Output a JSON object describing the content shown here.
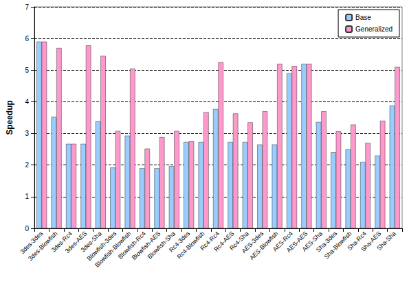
{
  "chart_data": {
    "type": "bar",
    "y_label": "Speedup",
    "categories": [
      "3des-3des",
      "3des-Blowfish",
      "3des-Rc4",
      "3des-AES",
      "3des-Sha",
      "Blowfish-3des",
      "Blowfish-Blowfish",
      "Blowfish-Rc4",
      "Blowfish-AES",
      "Blowfish-Sha",
      "Rc4-3des",
      "Rc4-Blowfish",
      "Rc4-Rc4",
      "Rc4-AES",
      "Rc4-Sha",
      "AES-3des",
      "AES-Blowfish",
      "AES-Rc4",
      "AES-AES",
      "AES-Sha",
      "Sha-3des",
      "Sha-Blowfish",
      "Sha-Rc4",
      "Sha-AES",
      "Sha-Sha"
    ],
    "series": [
      {
        "name": "Base",
        "color": "#99ccff",
        "values": [
          5.9,
          3.52,
          2.67,
          2.67,
          3.38,
          1.92,
          2.93,
          1.9,
          1.9,
          1.97,
          2.73,
          2.73,
          3.77,
          2.73,
          2.73,
          2.65,
          2.65,
          4.9,
          5.2,
          3.36,
          2.4,
          2.5,
          2.1,
          2.3,
          3.88
        ]
      },
      {
        "name": "Generalized",
        "color": "#ff99cc",
        "values": [
          5.9,
          5.7,
          2.67,
          5.78,
          5.45,
          3.08,
          5.05,
          2.52,
          2.88,
          3.08,
          2.75,
          3.67,
          5.25,
          3.63,
          3.35,
          3.7,
          5.2,
          5.13,
          5.2,
          3.7,
          3.07,
          3.28,
          2.7,
          3.4,
          5.1
        ]
      }
    ],
    "ylim": [
      0,
      7
    ],
    "yticks": [
      0,
      1,
      2,
      3,
      4,
      5,
      6,
      7
    ],
    "grid": true,
    "legend": "upper right"
  }
}
